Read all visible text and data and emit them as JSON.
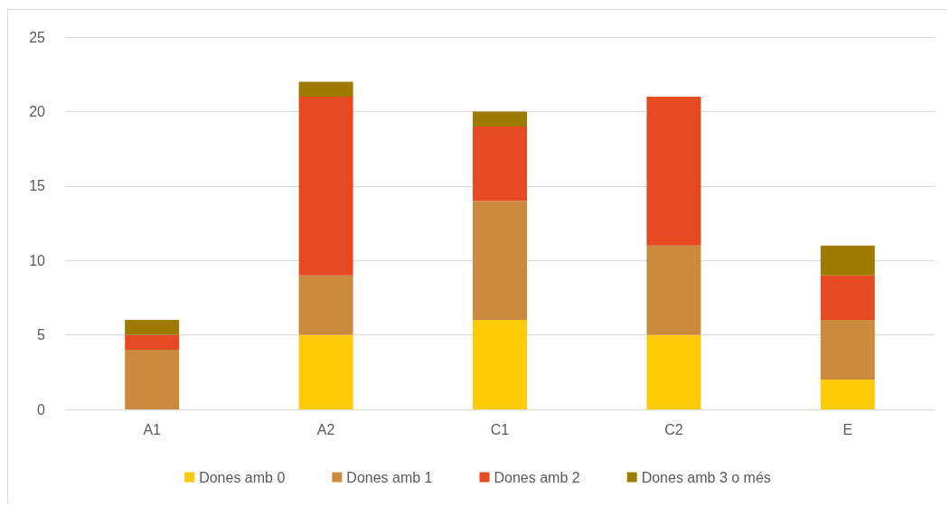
{
  "chart_data": {
    "type": "bar",
    "stacked": true,
    "categories": [
      "A1",
      "A2",
      "C1",
      "C2",
      "E"
    ],
    "series": [
      {
        "name": "Dones amb 0",
        "color": "#ffcb08",
        "values": [
          0,
          5,
          6,
          5,
          2
        ]
      },
      {
        "name": "Dones amb 1",
        "color": "#cc8a3e",
        "values": [
          4,
          4,
          8,
          6,
          4
        ]
      },
      {
        "name": "Dones amb 2",
        "color": "#e64a23",
        "values": [
          1,
          12,
          5,
          10,
          3
        ]
      },
      {
        "name": "Dones amb 3 o més",
        "color": "#9e7b00",
        "values": [
          1,
          1,
          1,
          0,
          2
        ]
      }
    ],
    "ylim": [
      0,
      25
    ],
    "yticks": [
      0,
      5,
      10,
      15,
      20,
      25
    ],
    "grid": "y",
    "legend": "bottom"
  }
}
